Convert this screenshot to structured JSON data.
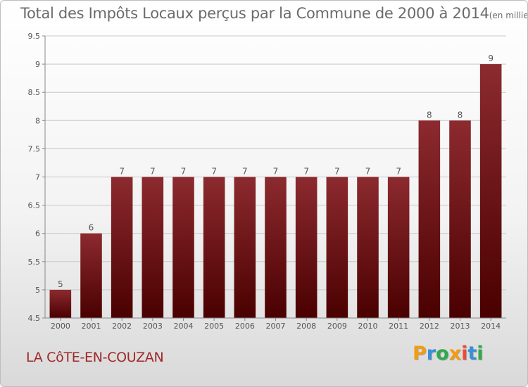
{
  "title": "Total des Impôts Locaux perçus par la Commune de 2000 à 2014",
  "unit_note": "(en milliers d'€)",
  "commune": "LA CôTE-EN-COUZAN",
  "logo_text": "Proxiti",
  "colors": {
    "bar_top": "#8c2a2f",
    "bar_bottom": "#4a0000",
    "grid": "#c8c8c8",
    "axis_text": "#555555",
    "commune_text": "#a02828",
    "logo": [
      "#f39c12",
      "#3a8fd6",
      "#2eaa4a",
      "#f39c12",
      "#e84c3d",
      "#3a8fd6",
      "#2eaa4a"
    ]
  },
  "chart_data": {
    "type": "bar",
    "title": "Total des Impôts Locaux perçus par la Commune de 2000 à 2014",
    "xlabel": "",
    "ylabel": "",
    "categories": [
      "2000",
      "2001",
      "2002",
      "2003",
      "2004",
      "2005",
      "2006",
      "2007",
      "2008",
      "2009",
      "2010",
      "2011",
      "2012",
      "2013",
      "2014"
    ],
    "values": [
      5,
      6,
      7,
      7,
      7,
      7,
      7,
      7,
      7,
      7,
      7,
      7,
      8,
      8,
      9
    ],
    "ylim": [
      4.5,
      9.5
    ],
    "yticks": [
      "4.5",
      "5",
      "5.5",
      "6",
      "6.5",
      "7",
      "7.5",
      "8",
      "8.5",
      "9",
      "9.5"
    ],
    "grid": true
  }
}
